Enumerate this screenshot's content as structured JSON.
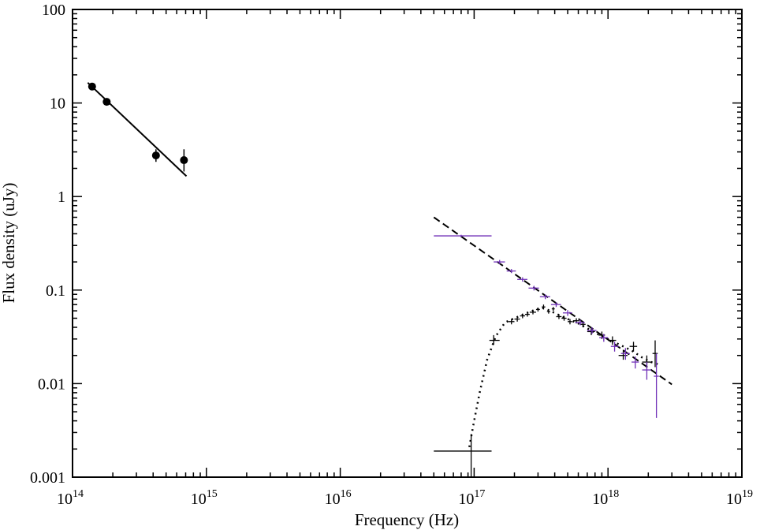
{
  "chart_data": {
    "type": "scatter",
    "title": "",
    "xlabel": "Frequency (Hz)",
    "ylabel": "Flux density (uJy)",
    "xscale": "log",
    "yscale": "log",
    "xlim": [
      100000000000000.0,
      1e+19
    ],
    "ylim": [
      0.001,
      100
    ],
    "x_ticks": [
      {
        "value": 100000000000000.0,
        "base": "10",
        "exp": "14"
      },
      {
        "value": 1000000000000000.0,
        "base": "10",
        "exp": "15"
      },
      {
        "value": 1e+16,
        "base": "10",
        "exp": "16"
      },
      {
        "value": 1e+17,
        "base": "10",
        "exp": "17"
      },
      {
        "value": 1e+18,
        "base": "10",
        "exp": "18"
      },
      {
        "value": 1e+19,
        "base": "10",
        "exp": "19"
      }
    ],
    "y_ticks": [
      {
        "value": 0.001,
        "label": "0.001"
      },
      {
        "value": 0.01,
        "label": "0.01"
      },
      {
        "value": 0.1,
        "label": "0.1"
      },
      {
        "value": 1,
        "label": "1"
      },
      {
        "value": 10,
        "label": "10"
      },
      {
        "value": 100,
        "label": "100"
      }
    ],
    "grid": false,
    "colors": {
      "black": "#000000",
      "purple": "#7030b8"
    },
    "series": [
      {
        "color": "#000000",
        "style": "filled-circle-markers",
        "points": [
          {
            "x": 140000000000000.0,
            "y": 15.0,
            "ylo": 14.0,
            "yhi": 16.0
          },
          {
            "x": 180000000000000.0,
            "y": 10.3,
            "ylo": 9.7,
            "yhi": 10.9
          },
          {
            "x": 420000000000000.0,
            "y": 2.75,
            "ylo": 2.35,
            "yhi": 3.2
          },
          {
            "x": 680000000000000.0,
            "y": 2.45,
            "ylo": 1.85,
            "yhi": 3.2
          }
        ]
      },
      {
        "color": "#000000",
        "style": "solid-line",
        "points": [
          {
            "x": 130000000000000.0,
            "y": 16.5
          },
          {
            "x": 710000000000000.0,
            "y": 1.65
          }
        ]
      },
      {
        "color": "#000000",
        "style": "dashed-line",
        "points": [
          {
            "x": 5e+16,
            "y": 0.6
          },
          {
            "x": 3e+18,
            "y": 0.0098
          }
        ]
      },
      {
        "color": "#000000",
        "style": "dotted-line",
        "points": [
          {
            "x": 9.2e+16,
            "y": 0.0021
          },
          {
            "x": 1e+17,
            "y": 0.004
          },
          {
            "x": 1.1e+17,
            "y": 0.008
          },
          {
            "x": 1.25e+17,
            "y": 0.018
          },
          {
            "x": 1.45e+17,
            "y": 0.032
          },
          {
            "x": 1.7e+17,
            "y": 0.045
          },
          {
            "x": 2e+17,
            "y": 0.05
          },
          {
            "x": 2.4e+17,
            "y": 0.056
          },
          {
            "x": 2.8e+17,
            "y": 0.061
          },
          {
            "x": 3.2e+17,
            "y": 0.065
          },
          {
            "x": 3.6e+17,
            "y": 0.061
          },
          {
            "x": 4.2e+17,
            "y": 0.055
          },
          {
            "x": 5e+17,
            "y": 0.049
          },
          {
            "x": 6e+17,
            "y": 0.044
          },
          {
            "x": 7e+17,
            "y": 0.039
          },
          {
            "x": 8e+17,
            "y": 0.035
          },
          {
            "x": 9.5e+17,
            "y": 0.031
          },
          {
            "x": 1.1e+18,
            "y": 0.028
          },
          {
            "x": 1.3e+18,
            "y": 0.025
          },
          {
            "x": 1.55e+18,
            "y": 0.022
          },
          {
            "x": 1.8e+18,
            "y": 0.019
          },
          {
            "x": 2.1e+18,
            "y": 0.017
          },
          {
            "x": 2.4e+18,
            "y": 0.016
          }
        ]
      },
      {
        "color": "#000000",
        "style": "cross-markers",
        "points": [
          {
            "x": 9.5e+16,
            "y": 0.0019,
            "xlo": 5e+16,
            "xhi": 1.35e+17,
            "ylo": 0.001,
            "yhi": 0.0029
          },
          {
            "x": 1.4e+17,
            "y": 0.029,
            "xlo": 1.3e+17,
            "xhi": 1.55e+17,
            "ylo": 0.026,
            "yhi": 0.033
          },
          {
            "x": 1.9e+17,
            "y": 0.046,
            "xlo": 1.8e+17,
            "xhi": 2e+17,
            "ylo": 0.043,
            "yhi": 0.049
          },
          {
            "x": 2.1e+17,
            "y": 0.049,
            "xlo": 2e+17,
            "xhi": 2.2e+17,
            "ylo": 0.046,
            "yhi": 0.052
          },
          {
            "x": 2.3e+17,
            "y": 0.053,
            "xlo": 2.2e+17,
            "xhi": 2.4e+17,
            "ylo": 0.05,
            "yhi": 0.056
          },
          {
            "x": 2.5e+17,
            "y": 0.055,
            "xlo": 2.4e+17,
            "xhi": 2.6e+17,
            "ylo": 0.052,
            "yhi": 0.058
          },
          {
            "x": 2.75e+17,
            "y": 0.058,
            "xlo": 2.6e+17,
            "xhi": 2.9e+17,
            "ylo": 0.055,
            "yhi": 0.061
          },
          {
            "x": 3e+17,
            "y": 0.062,
            "xlo": 2.9e+17,
            "xhi": 3.1e+17,
            "ylo": 0.059,
            "yhi": 0.065
          },
          {
            "x": 3.3e+17,
            "y": 0.066,
            "xlo": 3.2e+17,
            "xhi": 3.4e+17,
            "ylo": 0.062,
            "yhi": 0.07
          },
          {
            "x": 3.6e+17,
            "y": 0.059,
            "xlo": 3.5e+17,
            "xhi": 3.7e+17,
            "ylo": 0.056,
            "yhi": 0.062
          },
          {
            "x": 3.9e+17,
            "y": 0.063,
            "xlo": 3.8e+17,
            "xhi": 4e+17,
            "ylo": 0.06,
            "yhi": 0.066
          },
          {
            "x": 4.3e+17,
            "y": 0.052,
            "xlo": 4.1e+17,
            "xhi": 4.5e+17,
            "ylo": 0.049,
            "yhi": 0.055
          },
          {
            "x": 4.7e+17,
            "y": 0.05,
            "xlo": 4.5e+17,
            "xhi": 4.9e+17,
            "ylo": 0.047,
            "yhi": 0.053
          },
          {
            "x": 5.2e+17,
            "y": 0.046,
            "xlo": 5e+17,
            "xhi": 5.4e+17,
            "ylo": 0.043,
            "yhi": 0.049
          },
          {
            "x": 5.8e+17,
            "y": 0.047,
            "xlo": 5.5e+17,
            "xhi": 6.1e+17,
            "ylo": 0.044,
            "yhi": 0.05
          },
          {
            "x": 6.5e+17,
            "y": 0.043,
            "xlo": 6.2e+17,
            "xhi": 6.8e+17,
            "ylo": 0.04,
            "yhi": 0.046
          },
          {
            "x": 7.5e+17,
            "y": 0.036,
            "xlo": 7e+17,
            "xhi": 8e+17,
            "ylo": 0.033,
            "yhi": 0.039
          },
          {
            "x": 9e+17,
            "y": 0.033,
            "xlo": 8.5e+17,
            "xhi": 9.5e+17,
            "ylo": 0.03,
            "yhi": 0.036
          },
          {
            "x": 1.08e+18,
            "y": 0.029,
            "xlo": 1e+18,
            "xhi": 1.15e+18,
            "ylo": 0.026,
            "yhi": 0.032
          },
          {
            "x": 1.3e+18,
            "y": 0.02,
            "xlo": 1.2e+18,
            "xhi": 1.4e+18,
            "ylo": 0.018,
            "yhi": 0.023
          },
          {
            "x": 1.55e+18,
            "y": 0.025,
            "xlo": 1.45e+18,
            "xhi": 1.65e+18,
            "ylo": 0.022,
            "yhi": 0.028
          },
          {
            "x": 1.95e+18,
            "y": 0.017,
            "xlo": 1.8e+18,
            "xhi": 2.1e+18,
            "ylo": 0.015,
            "yhi": 0.02
          },
          {
            "x": 2.25e+18,
            "y": 0.021,
            "xlo": 2.15e+18,
            "xhi": 2.35e+18,
            "ylo": 0.015,
            "yhi": 0.029
          }
        ]
      },
      {
        "color": "#7030b8",
        "style": "cross-markers",
        "points": [
          {
            "x": 8e+16,
            "y": 0.38,
            "xlo": 5e+16,
            "xhi": 1.35e+17,
            "ylo": 0.37,
            "yhi": 0.39
          },
          {
            "x": 1.55e+17,
            "y": 0.2,
            "xlo": 1.4e+17,
            "xhi": 1.7e+17,
            "ylo": 0.19,
            "yhi": 0.21
          },
          {
            "x": 1.9e+17,
            "y": 0.16,
            "xlo": 1.75e+17,
            "xhi": 2.05e+17,
            "ylo": 0.152,
            "yhi": 0.168
          },
          {
            "x": 2.3e+17,
            "y": 0.13,
            "xlo": 2.1e+17,
            "xhi": 2.5e+17,
            "ylo": 0.123,
            "yhi": 0.137
          },
          {
            "x": 2.8e+17,
            "y": 0.105,
            "xlo": 2.55e+17,
            "xhi": 3.05e+17,
            "ylo": 0.099,
            "yhi": 0.111
          },
          {
            "x": 3.4e+17,
            "y": 0.085,
            "xlo": 3.1e+17,
            "xhi": 3.7e+17,
            "ylo": 0.08,
            "yhi": 0.09
          },
          {
            "x": 4.1e+17,
            "y": 0.07,
            "xlo": 3.75e+17,
            "xhi": 4.45e+17,
            "ylo": 0.066,
            "yhi": 0.074
          },
          {
            "x": 5e+17,
            "y": 0.057,
            "xlo": 4.6e+17,
            "xhi": 5.4e+17,
            "ylo": 0.053,
            "yhi": 0.061
          },
          {
            "x": 6.2e+17,
            "y": 0.045,
            "xlo": 5.7e+17,
            "xhi": 6.7e+17,
            "ylo": 0.042,
            "yhi": 0.048
          },
          {
            "x": 7.6e+17,
            "y": 0.037,
            "xlo": 7e+17,
            "xhi": 8.2e+17,
            "ylo": 0.034,
            "yhi": 0.04
          },
          {
            "x": 9.3e+17,
            "y": 0.031,
            "xlo": 8.6e+17,
            "xhi": 1e+18,
            "ylo": 0.028,
            "yhi": 0.034
          },
          {
            "x": 1.12e+18,
            "y": 0.025,
            "xlo": 1.05e+18,
            "xhi": 1.2e+18,
            "ylo": 0.022,
            "yhi": 0.028
          },
          {
            "x": 1.35e+18,
            "y": 0.021,
            "xlo": 1.25e+18,
            "xhi": 1.45e+18,
            "ylo": 0.018,
            "yhi": 0.024
          },
          {
            "x": 1.6e+18,
            "y": 0.017,
            "xlo": 1.5e+18,
            "xhi": 1.7e+18,
            "ylo": 0.0145,
            "yhi": 0.0195
          },
          {
            "x": 1.95e+18,
            "y": 0.014,
            "xlo": 1.8e+18,
            "xhi": 2.1e+18,
            "ylo": 0.011,
            "yhi": 0.017
          },
          {
            "x": 2.3e+18,
            "y": 0.012,
            "xlo": 2.2e+18,
            "xhi": 2.4e+18,
            "ylo": 0.0043,
            "yhi": 0.021
          }
        ]
      }
    ]
  }
}
